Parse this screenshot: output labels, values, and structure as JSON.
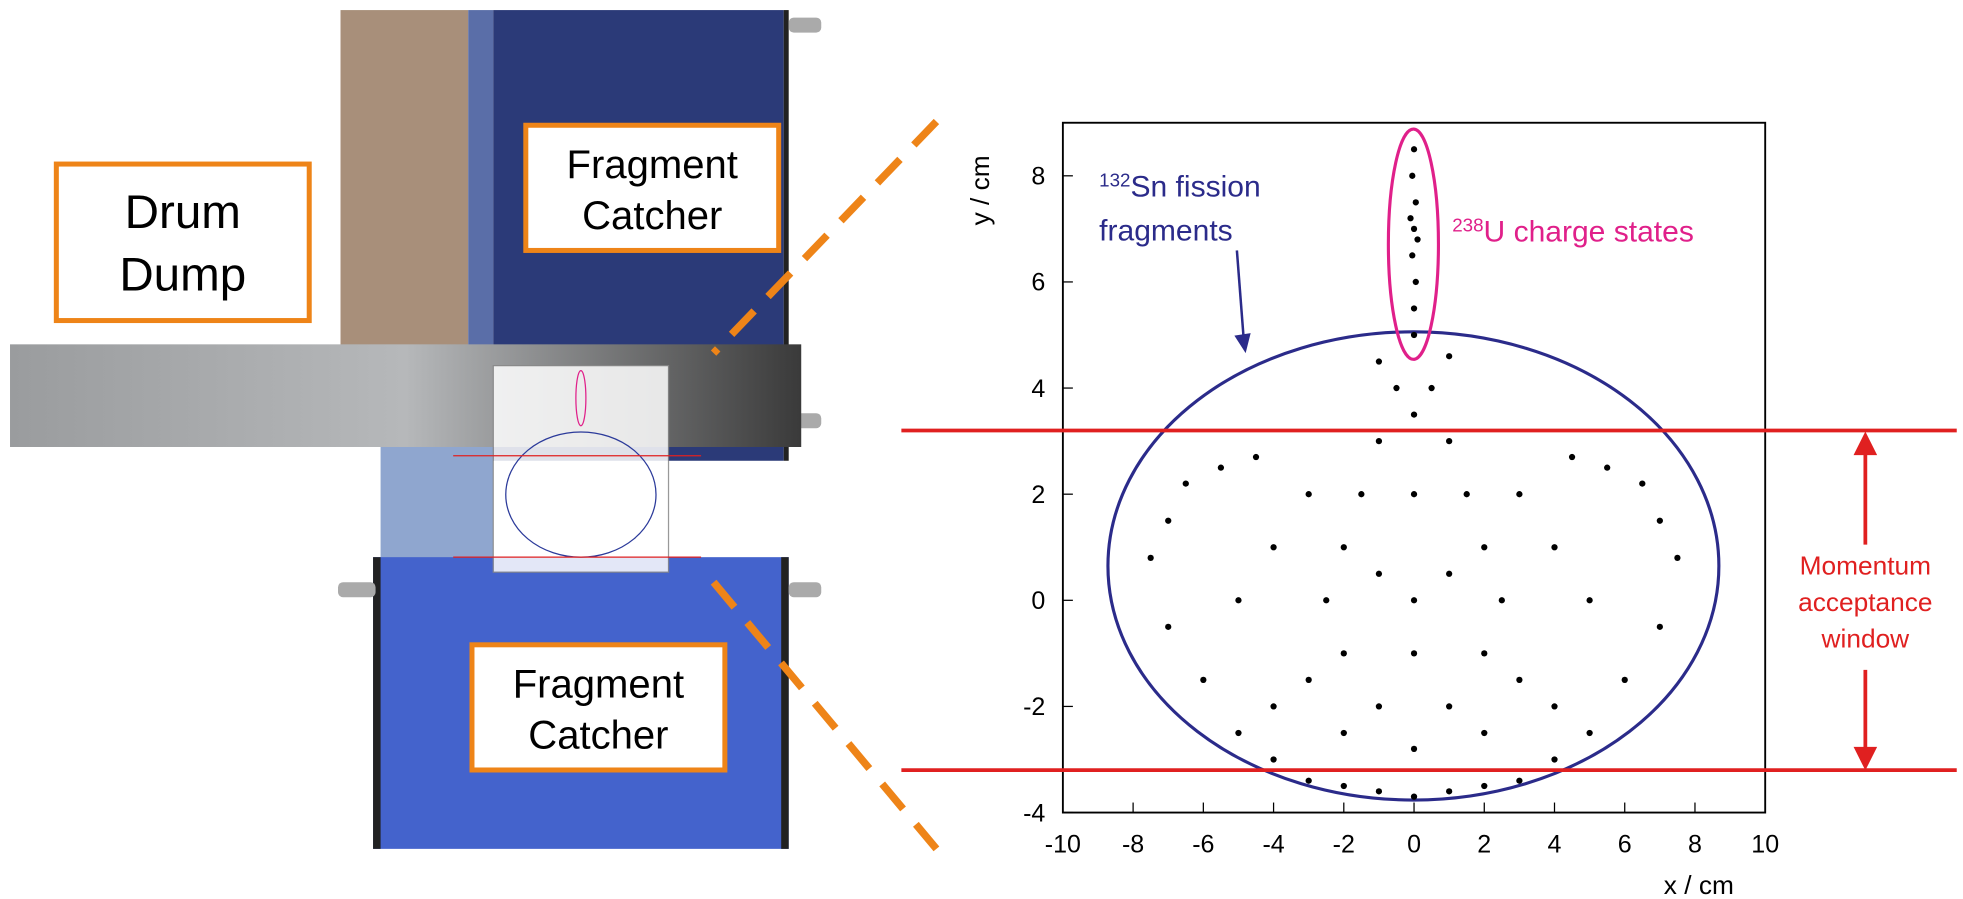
{
  "diagram": {
    "drum_dump": [
      "Drum",
      "Dump"
    ],
    "catcher_top": [
      "Fragment",
      "Catcher"
    ],
    "catcher_bottom": [
      "Fragment",
      "Catcher"
    ]
  },
  "chart_data": {
    "type": "scatter",
    "xlabel": "x / cm",
    "ylabel": "y / cm",
    "sn_label": {
      "mass": "132",
      "text": "Sn fission",
      "line2": "fragments"
    },
    "u_label": {
      "mass": "238",
      "text": "U charge states"
    },
    "window_label": [
      "Momentum",
      "acceptance",
      "window"
    ],
    "xlim": [
      -10,
      10
    ],
    "ylim": [
      -4,
      9
    ],
    "xticks": [
      -10,
      -8,
      -6,
      -4,
      -2,
      0,
      2,
      4,
      6,
      8,
      10
    ],
    "yticks": [
      -4,
      -2,
      0,
      2,
      4,
      6,
      8
    ],
    "window_limits": [
      3.2,
      -3.2
    ],
    "color": "#000000",
    "x": [
      0,
      0,
      0.05,
      -0.05,
      0,
      0.05,
      -0.05,
      0,
      0.1,
      -0.1,
      -6.5,
      -5.5,
      -4.5,
      -7,
      -7.5,
      -7,
      -6,
      -5,
      -4,
      -3,
      -2,
      -1,
      0,
      1,
      2,
      3,
      4,
      5,
      6,
      7,
      7.5,
      7,
      6.5,
      5.5,
      4.5,
      -2,
      -1.5,
      -1,
      -0.5,
      0,
      0.5,
      1,
      1.5,
      2,
      -2.5,
      -2,
      -1,
      0,
      1,
      2,
      2.5,
      3,
      -3,
      -4,
      4,
      -5,
      5,
      0,
      0,
      -1,
      1,
      -3,
      3,
      -1,
      1,
      -4,
      4,
      0,
      -2,
      2
    ],
    "values": [
      5,
      5.5,
      6,
      6.5,
      7,
      7.5,
      8,
      8.5,
      6.8,
      7.2,
      2.2,
      2.5,
      2.7,
      1.5,
      0.8,
      -0.5,
      -1.5,
      -2.5,
      -3,
      -3.4,
      -3.5,
      -3.6,
      -3.7,
      -3.6,
      -3.5,
      -3.4,
      -3,
      -2.5,
      -1.5,
      -0.5,
      0.8,
      1.5,
      2.2,
      2.5,
      2.7,
      1,
      2,
      3,
      4,
      3.5,
      4,
      3,
      2,
      1,
      0,
      -1,
      -2,
      -1,
      -2,
      -1,
      0,
      -1.5,
      -1.5,
      1,
      1,
      0,
      0,
      0,
      2,
      0.5,
      0.5,
      2,
      2,
      4.5,
      4.6,
      -2,
      -2,
      -2.8,
      -2.5,
      -2.5
    ]
  }
}
